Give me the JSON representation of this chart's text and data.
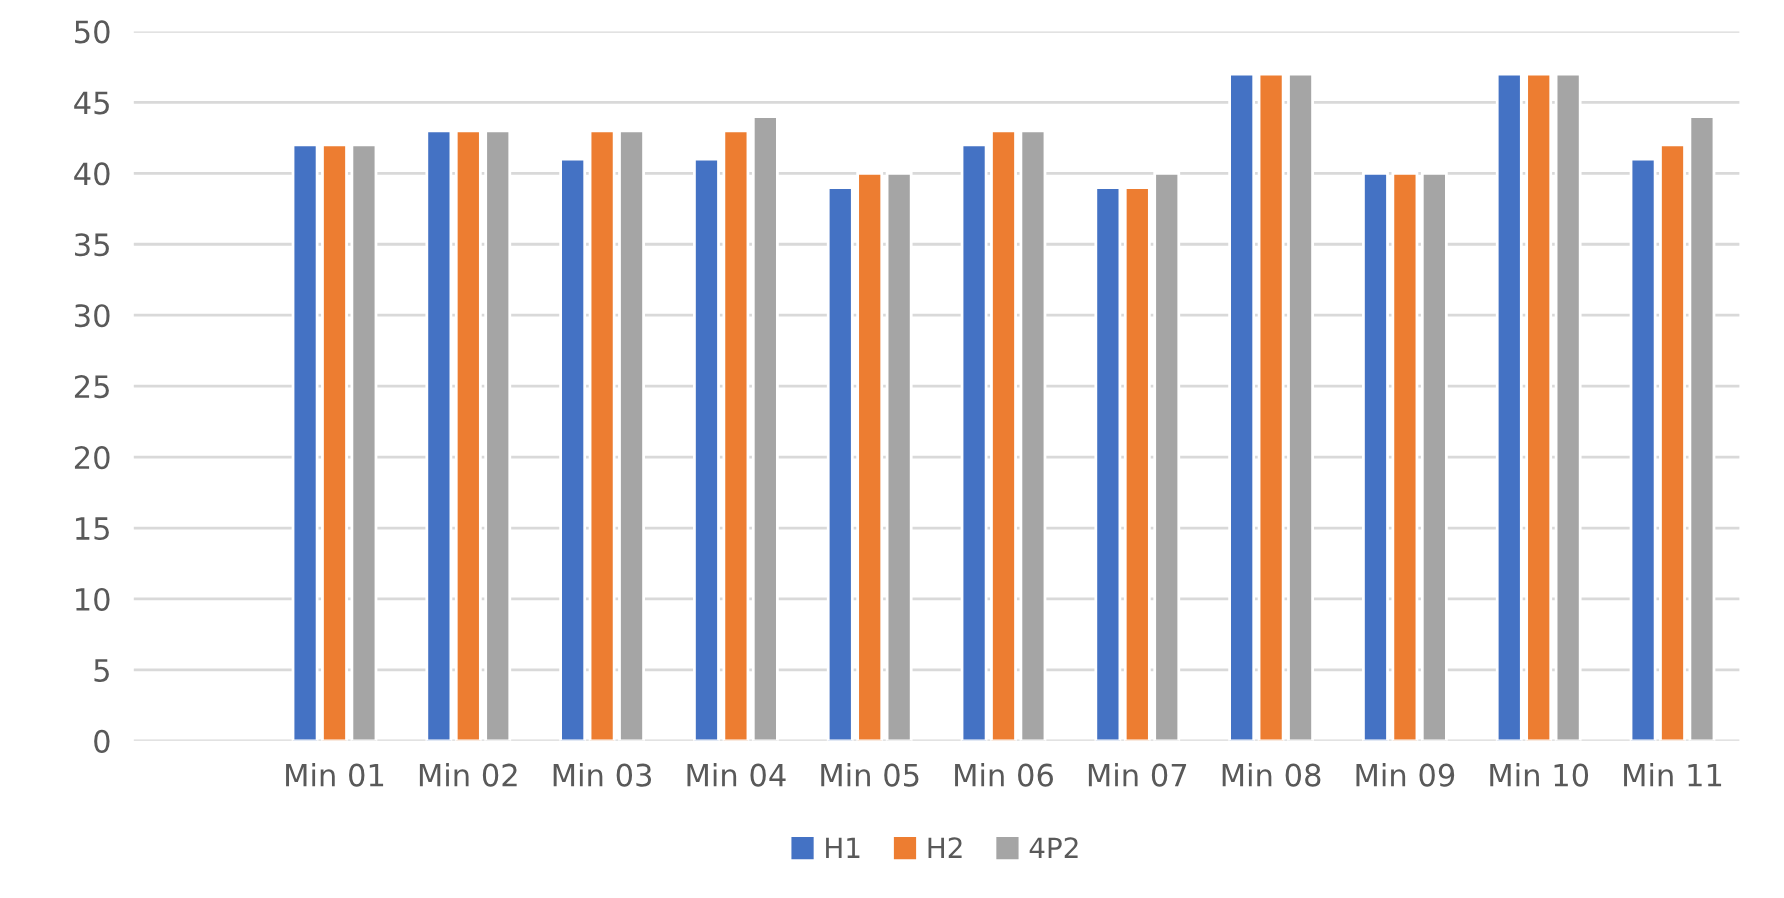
{
  "chart_data": {
    "type": "bar",
    "categories": [
      null,
      "Min 01",
      "Min 02",
      "Min 03",
      "Min 04",
      "Min 05",
      "Min 06",
      "Min 07",
      "Min 08",
      "Min 09",
      "Min 10",
      "Min 11"
    ],
    "series": [
      {
        "name": "H1",
        "color": "#4472c4",
        "values": [
          null,
          42,
          43,
          41,
          41,
          39,
          42,
          39,
          47,
          40,
          47,
          41
        ]
      },
      {
        "name": "H2",
        "color": "#ed7d31",
        "values": [
          null,
          42,
          43,
          43,
          43,
          40,
          43,
          39,
          47,
          40,
          47,
          42
        ]
      },
      {
        "name": "4P2",
        "color": "#a5a5a5",
        "values": [
          null,
          42,
          43,
          43,
          44,
          40,
          43,
          40,
          47,
          40,
          47,
          44
        ]
      }
    ],
    "ylim": [
      0,
      50
    ],
    "yticks": [
      0,
      5,
      10,
      15,
      20,
      25,
      30,
      35,
      40,
      45,
      50
    ],
    "grid": "y",
    "legend": "bottom"
  }
}
